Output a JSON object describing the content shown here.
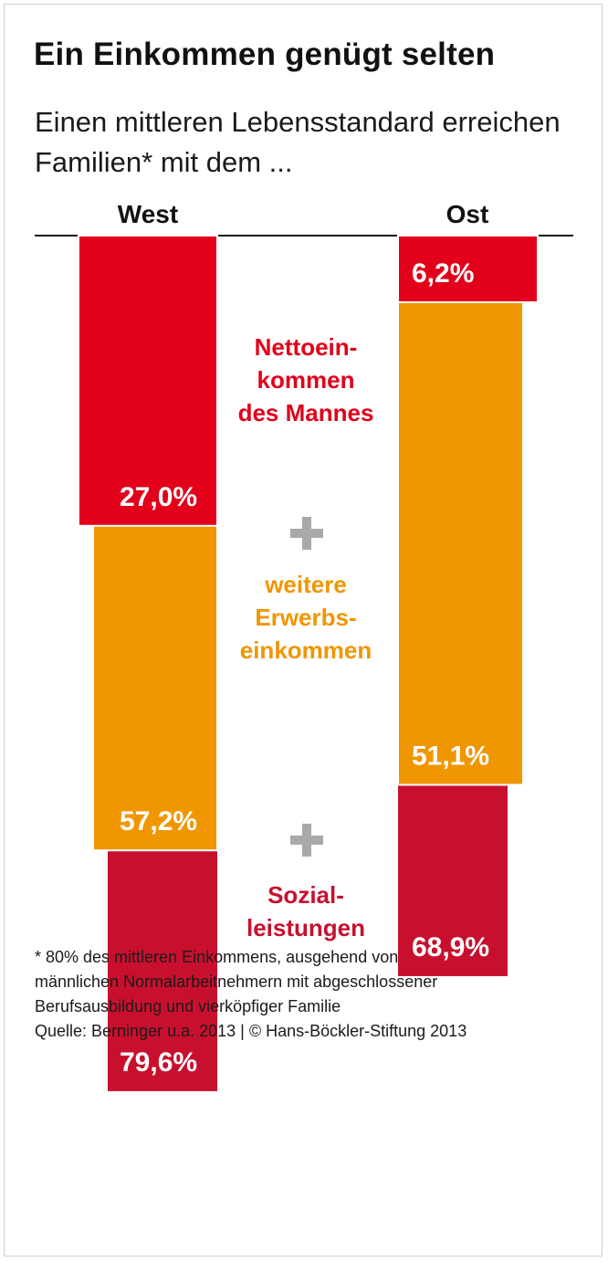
{
  "title": "Ein Einkommen genügt selten",
  "subtitle": "Einen mittleren Lebensstandard erreichen Familien* mit dem ...",
  "columns": [
    "West",
    "Ost"
  ],
  "labels": {
    "men": "Nettoein-\nkommen\ndes Mannes",
    "further": "weitere\nErwerbs-\neinkommen",
    "social": "Sozial-\nleistungen"
  },
  "colors": {
    "men": "#e2001a",
    "further": "#f09600",
    "social": "#c8102e",
    "plus": "#a9a9a9",
    "separator": "#ffffff"
  },
  "footnote": "* 80% des mittleren Einkommens, ausgehend von\nmännlichen Normalarbeitnehmern mit abgeschlossener\nBerufsausbildung und vierköpfiger Familie",
  "source": "Quelle: Berninger u.a. 2013 | © Hans-Böckler-Stiftung 2013",
  "chart_data": {
    "type": "bar",
    "layout": "nested-cumulative",
    "categories": [
      "West",
      "Ost"
    ],
    "series": [
      {
        "name": "Nettoeinkommen des Mannes",
        "values": [
          27.0,
          6.2
        ],
        "labels": [
          "27,0%",
          "6,2%"
        ]
      },
      {
        "name": "weitere Erwerbseinkommen",
        "values": [
          57.2,
          51.1
        ],
        "labels": [
          "57,2%",
          "51,1%"
        ]
      },
      {
        "name": "Sozialleistungen",
        "values": [
          79.6,
          68.9
        ],
        "labels": [
          "79,6%",
          "68,9%"
        ]
      }
    ],
    "ylim": [
      0,
      100
    ],
    "xlabel": "",
    "ylabel": ""
  }
}
